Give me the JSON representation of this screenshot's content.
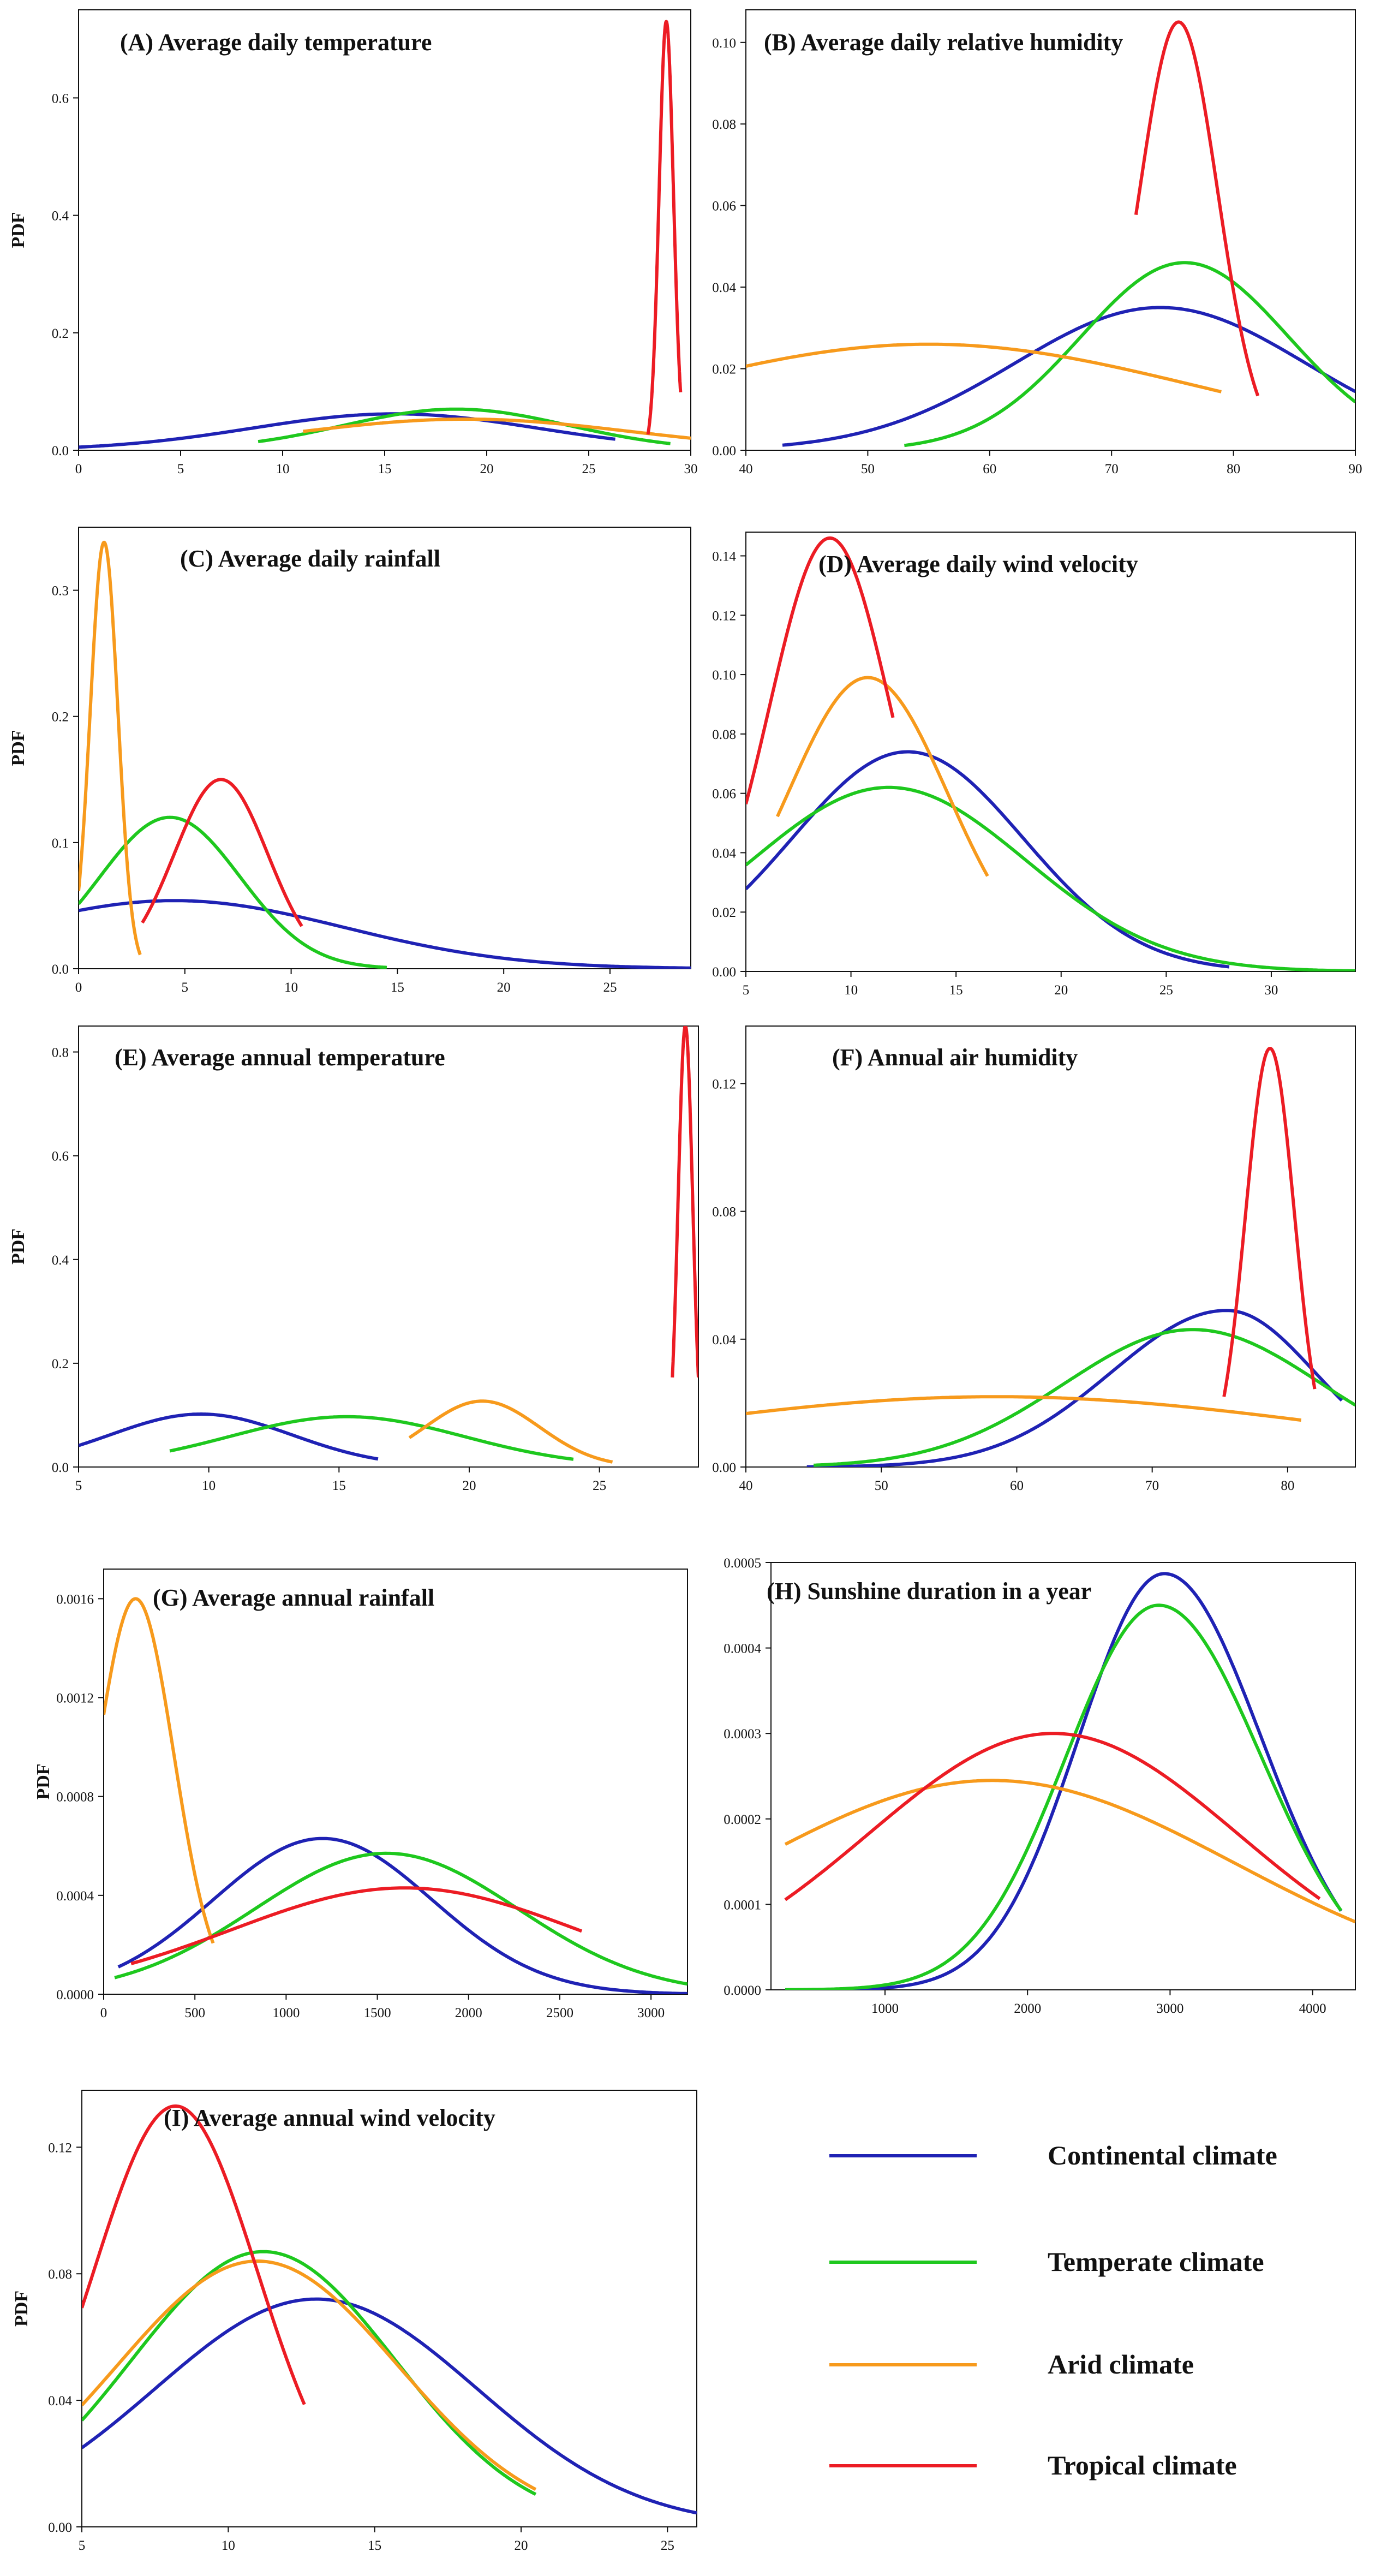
{
  "figure": {
    "legend_title": ""
  },
  "colors": {
    "Continental climate": "#1f22b4",
    "Temperate climate": "#1ec81e",
    "Arid climate": "#f79a1c",
    "Tropical climate": "#ec1c24",
    "axis": "#111111"
  },
  "legend": {
    "items": [
      "Continental climate",
      "Temperate climate",
      "Arid climate",
      "Tropical climate"
    ]
  },
  "chart_data": [
    {
      "id": "A",
      "type": "line",
      "title": "(A) Average daily temperature",
      "xlabel": "",
      "ylabel": "PDF",
      "xlim": [
        0,
        30
      ],
      "ylim": [
        0,
        0.75
      ],
      "xticks": [
        0,
        5,
        10,
        15,
        20,
        25,
        30
      ],
      "xtick_labels": [
        "0",
        "5",
        "10",
        "15",
        "20",
        "25",
        "30"
      ],
      "yticks": [
        0,
        0.2,
        0.4,
        0.6
      ],
      "ytick_labels": [
        "0.0",
        "0.2",
        "0.4",
        "0.6"
      ],
      "series": [
        {
          "name": "Continental climate",
          "mu": 15.5,
          "peak": 0.062,
          "sl": 7,
          "sr": 7,
          "xmin": 0,
          "xmax": 26.3
        },
        {
          "name": "Temperate climate",
          "mu": 18.5,
          "peak": 0.07,
          "sl": 5.5,
          "sr": 5.5,
          "xmin": 8.8,
          "xmax": 29
        },
        {
          "name": "Arid climate",
          "mu": 19,
          "peak": 0.053,
          "sl": 8,
          "sr": 8,
          "xmin": 11,
          "xmax": 30
        },
        {
          "name": "Tropical climate",
          "mu": 28.8,
          "peak": 0.73,
          "sl": 0.35,
          "sr": 0.35,
          "xmin": 27.9,
          "xmax": 29.5
        }
      ]
    },
    {
      "id": "B",
      "type": "line",
      "title": "(B) Average daily relative humidity",
      "xlabel": "",
      "ylabel": "",
      "xlim": [
        40,
        90
      ],
      "ylim": [
        0,
        0.108
      ],
      "xticks": [
        40,
        50,
        60,
        70,
        80,
        90
      ],
      "xtick_labels": [
        "40",
        "50",
        "60",
        "70",
        "80",
        "90"
      ],
      "yticks": [
        0,
        0.02,
        0.04,
        0.06,
        0.08,
        0.1
      ],
      "ytick_labels": [
        "0.00",
        "0.02",
        "0.04",
        "0.06",
        "0.08",
        "0.10"
      ],
      "series": [
        {
          "name": "Continental climate",
          "mu": 74,
          "peak": 0.035,
          "sl": 12,
          "sr": 12,
          "xmin": 43,
          "xmax": 90
        },
        {
          "name": "Temperate climate",
          "mu": 76,
          "peak": 0.046,
          "sl": 8.5,
          "sr": 8.5,
          "xmin": 53,
          "xmax": 90
        },
        {
          "name": "Arid climate",
          "mu": 55,
          "peak": 0.026,
          "sl": 22,
          "sr": 22,
          "xmin": 40,
          "xmax": 79
        },
        {
          "name": "Tropical climate",
          "mu": 75.5,
          "peak": 0.105,
          "sl": 3.2,
          "sr": 3.2,
          "xmin": 72,
          "xmax": 82
        }
      ]
    },
    {
      "id": "C",
      "type": "line",
      "title": "(C) Average daily rainfall",
      "xlabel": "",
      "ylabel": "PDF",
      "xlim": [
        0,
        28.8
      ],
      "ylim": [
        0,
        0.35
      ],
      "xticks": [
        0,
        5,
        10,
        15,
        20,
        25
      ],
      "xtick_labels": [
        "0",
        "5",
        "10",
        "15",
        "20",
        "25"
      ],
      "yticks": [
        0,
        0.1,
        0.2,
        0.3
      ],
      "ytick_labels": [
        "0.0",
        "0.1",
        "0.2",
        "0.3"
      ],
      "series": [
        {
          "name": "Continental climate",
          "mu": 4.5,
          "peak": 0.054,
          "sl": 8,
          "sr": 8,
          "xmin": 0,
          "xmax": 28.8
        },
        {
          "name": "Temperate climate",
          "mu": 4.3,
          "peak": 0.12,
          "sl": 3.3,
          "sr": 3.3,
          "xmin": 0,
          "xmax": 14.5
        },
        {
          "name": "Arid climate",
          "mu": 1.2,
          "peak": 0.338,
          "sl": 0.65,
          "sr": 0.65,
          "xmin": 0,
          "xmax": 2.9
        },
        {
          "name": "Tropical climate",
          "mu": 6.7,
          "peak": 0.15,
          "sl": 2.2,
          "sr": 2.2,
          "xmin": 3,
          "xmax": 10.5
        }
      ]
    },
    {
      "id": "D",
      "type": "line",
      "title": "(D) Average daily wind velocity",
      "xlabel": "",
      "ylabel": "",
      "xlim": [
        5,
        34
      ],
      "ylim": [
        0,
        0.148
      ],
      "xticks": [
        5,
        10,
        15,
        20,
        25,
        30
      ],
      "xtick_labels": [
        "5",
        "10",
        "15",
        "20",
        "25",
        "30"
      ],
      "yticks": [
        0,
        0.02,
        0.04,
        0.06,
        0.08,
        0.1,
        0.12,
        0.14
      ],
      "ytick_labels": [
        "0.00",
        "0.02",
        "0.04",
        "0.06",
        "0.08",
        "0.10",
        "0.12",
        "0.14"
      ],
      "series": [
        {
          "name": "Continental climate",
          "mu": 12.7,
          "peak": 0.074,
          "sl": 5.5,
          "sr": 5.5,
          "xmin": 5,
          "xmax": 28
        },
        {
          "name": "Temperate climate",
          "mu": 11.8,
          "peak": 0.062,
          "sl": 6.5,
          "sr": 6.5,
          "xmin": 5,
          "xmax": 34
        },
        {
          "name": "Arid climate",
          "mu": 10.8,
          "peak": 0.099,
          "sl": 3.8,
          "sr": 3.8,
          "xmin": 6.5,
          "xmax": 16.5
        },
        {
          "name": "Tropical climate",
          "mu": 9,
          "peak": 0.146,
          "sl": 2.9,
          "sr": 2.9,
          "xmin": 5,
          "xmax": 12
        }
      ]
    },
    {
      "id": "E",
      "type": "line",
      "title": "(E) Average annual temperature",
      "xlabel": "",
      "ylabel": "PDF",
      "xlim": [
        5,
        28.8
      ],
      "ylim": [
        0,
        0.85
      ],
      "xticks": [
        5,
        10,
        15,
        20,
        25
      ],
      "xtick_labels": [
        "5",
        "10",
        "15",
        "20",
        "25"
      ],
      "yticks": [
        0,
        0.2,
        0.4,
        0.6,
        0.8
      ],
      "ytick_labels": [
        "0.0",
        "0.2",
        "0.4",
        "0.6",
        "0.8"
      ],
      "series": [
        {
          "name": "Continental climate",
          "mu": 9.7,
          "peak": 0.102,
          "sl": 3.5,
          "sr": 3.5,
          "xmin": 5,
          "xmax": 16.5
        },
        {
          "name": "Temperate climate",
          "mu": 15.3,
          "peak": 0.097,
          "sl": 4.5,
          "sr": 4.5,
          "xmin": 8.5,
          "xmax": 24
        },
        {
          "name": "Arid climate",
          "mu": 20.5,
          "peak": 0.127,
          "sl": 2.2,
          "sr": 2.2,
          "xmin": 17.7,
          "xmax": 25.5
        },
        {
          "name": "Tropical climate",
          "mu": 28.3,
          "peak": 0.85,
          "sl": 0.28,
          "sr": 0.28,
          "xmin": 27.8,
          "xmax": 28.8
        }
      ]
    },
    {
      "id": "F",
      "type": "line",
      "title": "(F) Annual air humidity",
      "xlabel": "",
      "ylabel": "",
      "xlim": [
        40,
        85
      ],
      "ylim": [
        0,
        0.138
      ],
      "xticks": [
        40,
        50,
        60,
        70,
        80
      ],
      "xtick_labels": [
        "40",
        "50",
        "60",
        "70",
        "80"
      ],
      "yticks": [
        0,
        0.04,
        0.08,
        0.12
      ],
      "ytick_labels": [
        "0.00",
        "0.04",
        "0.08",
        "0.12"
      ],
      "series": [
        {
          "name": "Continental climate",
          "mu": 75.5,
          "peak": 0.049,
          "sl": 8.5,
          "sr": 6.5,
          "xmin": 44.5,
          "xmax": 84
        },
        {
          "name": "Temperate climate",
          "mu": 73,
          "peak": 0.043,
          "sl": 9.5,
          "sr": 9.5,
          "xmin": 45,
          "xmax": 85
        },
        {
          "name": "Arid climate",
          "mu": 58.5,
          "peak": 0.022,
          "sl": 25,
          "sr": 25,
          "xmin": 40,
          "xmax": 81
        },
        {
          "name": "Tropical climate",
          "mu": 78.7,
          "peak": 0.131,
          "sl": 1.8,
          "sr": 1.8,
          "xmin": 75.3,
          "xmax": 82
        }
      ]
    },
    {
      "id": "G",
      "type": "line",
      "title": "(G) Average annual rainfall",
      "xlabel": "",
      "ylabel": "PDF",
      "xlim": [
        0,
        3200
      ],
      "ylim": [
        0,
        0.00172
      ],
      "xticks": [
        0,
        500,
        1000,
        1500,
        2000,
        2500,
        3000
      ],
      "xtick_labels": [
        "0",
        "500",
        "1000",
        "1500",
        "2000",
        "2500",
        "3000"
      ],
      "yticks": [
        0,
        0.0004,
        0.0008,
        0.0012,
        0.0016
      ],
      "ytick_labels": [
        "0.0000",
        "0.0004",
        "0.0008",
        "0.0012",
        "0.0016"
      ],
      "series": [
        {
          "name": "Continental climate",
          "mu": 1200,
          "peak": 0.00063,
          "sl": 600,
          "sr": 600,
          "xmin": 80,
          "xmax": 3200
        },
        {
          "name": "Temperate climate",
          "mu": 1550,
          "peak": 0.00057,
          "sl": 720,
          "sr": 720,
          "xmin": 60,
          "xmax": 3200
        },
        {
          "name": "Arid climate",
          "mu": 175,
          "peak": 0.0016,
          "sl": 210,
          "sr": 210,
          "xmin": 0,
          "xmax": 600
        },
        {
          "name": "Tropical climate",
          "mu": 1650,
          "peak": 0.00043,
          "sl": 950,
          "sr": 950,
          "xmin": 150,
          "xmax": 2620
        }
      ]
    },
    {
      "id": "H",
      "type": "line",
      "title": "(H) Sunshine duration in a year",
      "xlabel": "",
      "ylabel": "",
      "xlim": [
        200,
        4300
      ],
      "ylim": [
        0,
        0.0005
      ],
      "xticks": [
        1000,
        2000,
        3000,
        4000
      ],
      "xtick_labels": [
        "1000",
        "2000",
        "3000",
        "4000"
      ],
      "yticks": [
        0,
        0.0001,
        0.0002,
        0.0003,
        0.0004,
        0.0005
      ],
      "ytick_labels": [
        "0.0000",
        "0.0001",
        "0.0002",
        "0.0003",
        "0.0004",
        "0.0005"
      ],
      "series": [
        {
          "name": "Continental climate",
          "mu": 2960,
          "peak": 0.000487,
          "sl": 600,
          "sr": 680,
          "xmin": 300,
          "xmax": 4200
        },
        {
          "name": "Temperate climate",
          "mu": 2920,
          "peak": 0.00045,
          "sl": 650,
          "sr": 720,
          "xmin": 300,
          "xmax": 4200
        },
        {
          "name": "Arid climate",
          "mu": 1750,
          "peak": 0.000245,
          "sl": 1700,
          "sr": 1700,
          "xmin": 300,
          "xmax": 4300
        },
        {
          "name": "Tropical climate",
          "mu": 2180,
          "peak": 0.0003,
          "sl": 1300,
          "sr": 1300,
          "xmin": 300,
          "xmax": 4050
        }
      ]
    },
    {
      "id": "I",
      "type": "line",
      "title": "(I) Average annual wind velocity",
      "xlabel": "",
      "ylabel": "PDF",
      "xlim": [
        5,
        26
      ],
      "ylim": [
        0,
        0.138
      ],
      "xticks": [
        5,
        10,
        15,
        20,
        25
      ],
      "xtick_labels": [
        "5",
        "10",
        "15",
        "20",
        "25"
      ],
      "yticks": [
        0,
        0.04,
        0.08,
        0.12
      ],
      "ytick_labels": [
        "0.00",
        "0.04",
        "0.08",
        "0.12"
      ],
      "series": [
        {
          "name": "Continental climate",
          "mu": 13,
          "peak": 0.072,
          "sl": 5.5,
          "sr": 5.5,
          "xmin": 5,
          "xmax": 26
        },
        {
          "name": "Temperate climate",
          "mu": 11.2,
          "peak": 0.087,
          "sl": 4.5,
          "sr": 4.5,
          "xmin": 5,
          "xmax": 20.5
        },
        {
          "name": "Arid climate",
          "mu": 11,
          "peak": 0.084,
          "sl": 4.8,
          "sr": 4.8,
          "xmin": 5,
          "xmax": 20.5
        },
        {
          "name": "Tropical climate",
          "mu": 8.2,
          "peak": 0.133,
          "sl": 2.8,
          "sr": 2.8,
          "xmin": 5,
          "xmax": 12.6
        }
      ]
    }
  ]
}
